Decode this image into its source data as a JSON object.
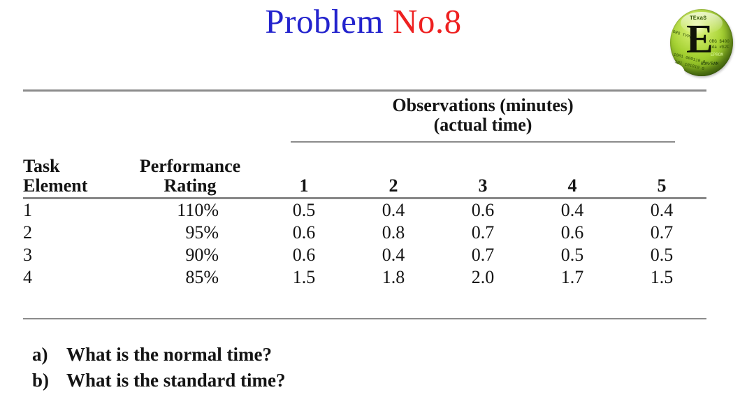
{
  "slide_title": {
    "word_blue": "Problem",
    "word_red": "No.8"
  },
  "colors": {
    "title_blue": "#2323cd",
    "title_red": "#ee2020",
    "table_rule_gray": "#8c8c8c",
    "logo_green": "#a6d233"
  },
  "logo": {
    "top_text": "TExaS",
    "letter": "E",
    "fragments": [
      "ORG TYPE",
      "ORG $400",
      "lda #$2F",
      "EPROM",
      "ROM/RAM",
      "1001 000110 0",
      "101 101010 0"
    ]
  },
  "table": {
    "span_header": {
      "line1": "Observations (minutes)",
      "line2": "(actual time)"
    },
    "col_task": {
      "line1": "Task",
      "line2": "Element"
    },
    "col_rating": {
      "line1": "Performance",
      "line2": "Rating"
    },
    "obs_columns": [
      "1",
      "2",
      "3",
      "4",
      "5"
    ],
    "rows": [
      {
        "task": "1",
        "rating": "110%",
        "obs": [
          "0.5",
          "0.4",
          "0.6",
          "0.4",
          "0.4"
        ]
      },
      {
        "task": "2",
        "rating": "95%",
        "obs": [
          "0.6",
          "0.8",
          "0.7",
          "0.6",
          "0.7"
        ]
      },
      {
        "task": "3",
        "rating": "90%",
        "obs": [
          "0.6",
          "0.4",
          "0.7",
          "0.5",
          "0.5"
        ]
      },
      {
        "task": "4",
        "rating": "85%",
        "obs": [
          "1.5",
          "1.8",
          "2.0",
          "1.7",
          "1.5"
        ]
      }
    ]
  },
  "questions": [
    {
      "label": "a)",
      "text": "What is the normal time?"
    },
    {
      "label": "b)",
      "text": "What is the standard time?"
    }
  ]
}
